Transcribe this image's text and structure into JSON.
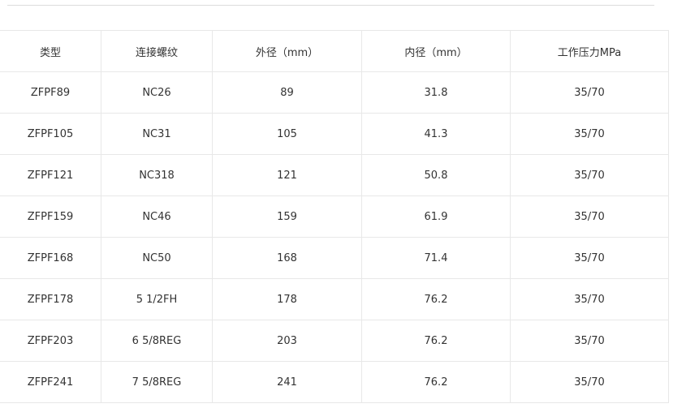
{
  "headers": [
    "类型",
    "连接螺纹",
    "外径（mm）",
    "内径（mm）",
    "工作压力MPa"
  ],
  "rows": [
    [
      "ZFPF89",
      "NC26",
      "89",
      "31.8",
      "35/70"
    ],
    [
      "ZFPF105",
      "NC31",
      "105",
      "41.3",
      "35/70"
    ],
    [
      "ZFPF121",
      "NC318",
      "121",
      "50.8",
      "35/70"
    ],
    [
      "ZFPF159",
      "NC46",
      "159",
      "61.9",
      "35/70"
    ],
    [
      "ZFPF168",
      "NC50",
      "168",
      "71.4",
      "35/70"
    ],
    [
      "ZFPF178",
      "5 1/2FH",
      "178",
      "76.2",
      "35/70"
    ],
    [
      "ZFPF203",
      "6 5/8REG",
      "203",
      "76.2",
      "35/70"
    ],
    [
      "ZFPF241",
      "7 5/8REG",
      "241",
      "76.2",
      "35/70"
    ]
  ]
}
